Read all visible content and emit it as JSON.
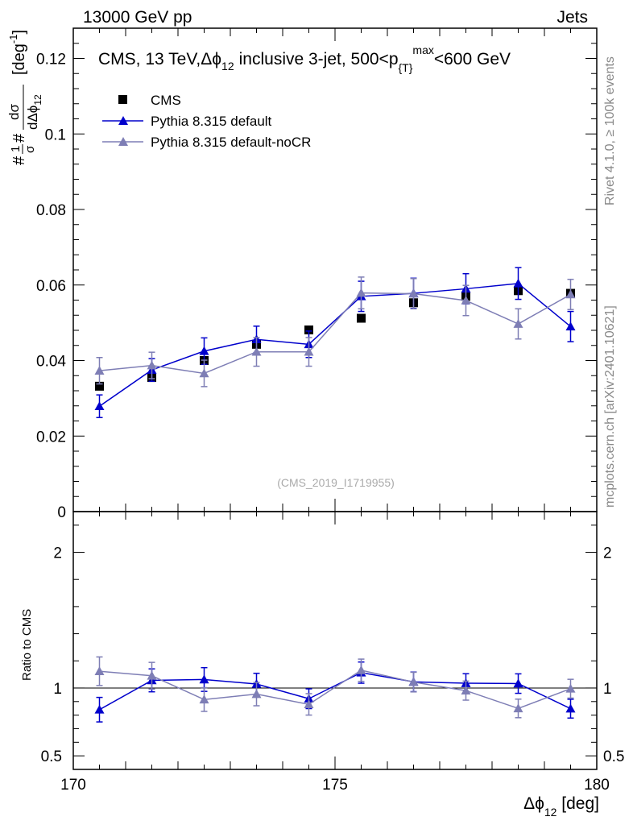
{
  "header": {
    "left": "13000 GeV pp",
    "right": "Jets"
  },
  "side": {
    "rivet": "Rivet 4.1.0, ≥ 100k events",
    "mcplots": "mcplots.cern.ch [arXiv:2401.10621]"
  },
  "chart_data": {
    "type": "scatter",
    "title": "CMS, 13 TeV, Δϕ12 inclusive 3-jet, 500<p{T}max<600 GeV",
    "title_parts": {
      "a": "CMS, 13 TeV,",
      "phi": "Δϕ",
      "phi_sub": "12",
      "b": "inclusive 3-jet, 500<p",
      "p_sub": "{T}",
      "p_sup": "max",
      "c": "<600 GeV"
    },
    "watermark": "(CMS_2019_I1719955)",
    "xlabel": "Δϕ12 [deg]",
    "xlabel_parts": {
      "main": "Δϕ",
      "sub": "12",
      "unit": " [deg]"
    },
    "ylabel": "#1/σ# dσ/dΔϕ12 [deg-1]",
    "ylabel_parts": {
      "pre": "#",
      "frac_num": "1",
      "frac_den": "σ",
      "mid": "#",
      "d_num": "dσ",
      "d_den": "dΔϕ",
      "d_den_sub": "12",
      "unit": "[deg",
      "unit_sup": "-1",
      "unit_close": "]"
    },
    "ratio_ylabel": "Ratio to CMS",
    "xlim": [
      170,
      180
    ],
    "ylim": [
      0,
      0.128
    ],
    "ratio_ylim": [
      0.4,
      2.3
    ],
    "x_ticks": [
      "170",
      "175",
      "180"
    ],
    "x_tick_values": [
      170,
      175,
      180
    ],
    "y_ticks": [
      "0",
      "0.02",
      "0.04",
      "0.06",
      "0.08",
      "0.1",
      "0.12"
    ],
    "y_tick_values": [
      0,
      0.02,
      0.04,
      0.06,
      0.08,
      0.1,
      0.12
    ],
    "ratio_ticks": [
      "0.5",
      "1",
      "2"
    ],
    "ratio_tick_values": [
      0.5,
      1,
      2
    ],
    "x": [
      170.5,
      171.5,
      172.5,
      173.5,
      174.5,
      175.5,
      176.5,
      177.5,
      178.5,
      179.5
    ],
    "series": [
      {
        "name": "CMS",
        "color": "#000000",
        "marker": "square",
        "values": [
          0.0332,
          0.0355,
          0.04,
          0.0443,
          0.0481,
          0.0512,
          0.0553,
          0.057,
          0.0585,
          0.0578
        ],
        "errors": [
          0.0008,
          0.0008,
          0.0009,
          0.0009,
          0.001,
          0.001,
          0.0011,
          0.0011,
          0.0011,
          0.0011
        ]
      },
      {
        "name": "Pythia 8.315 default",
        "color": "#0000cc",
        "marker": "triangle",
        "values": [
          0.0279,
          0.0375,
          0.0425,
          0.0456,
          0.0443,
          0.057,
          0.0578,
          0.059,
          0.0604,
          0.049
        ],
        "errors": [
          0.003,
          0.003,
          0.0035,
          0.0035,
          0.0035,
          0.004,
          0.004,
          0.004,
          0.0042,
          0.004
        ]
      },
      {
        "name": "Pythia 8.315 default-noCR",
        "color": "#7e7eb5",
        "marker": "triangle",
        "values": [
          0.0373,
          0.0387,
          0.0366,
          0.0423,
          0.0423,
          0.0579,
          0.0577,
          0.0559,
          0.0497,
          0.0575
        ],
        "errors": [
          0.0035,
          0.0035,
          0.0035,
          0.0038,
          0.0038,
          0.0042,
          0.004,
          0.004,
          0.004,
          0.004
        ]
      }
    ]
  }
}
